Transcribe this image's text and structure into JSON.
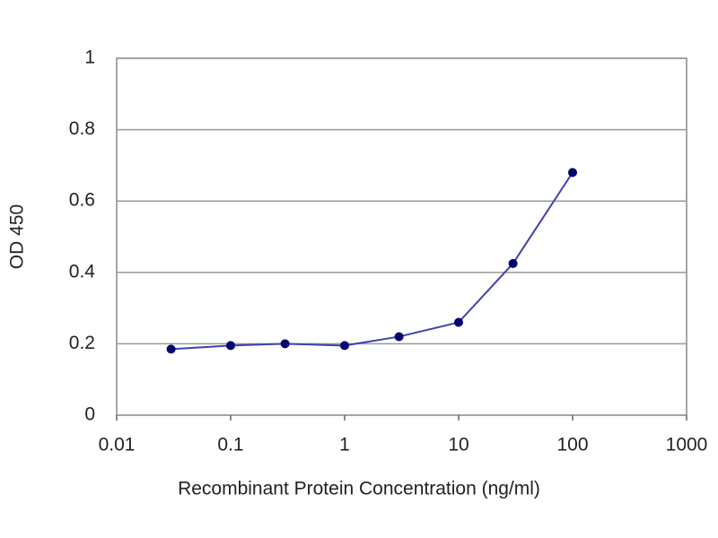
{
  "chart_data": {
    "type": "line",
    "x_label": "Recombinant Protein Concentration (ng/ml)",
    "y_label": "OD 450",
    "x": [
      0.03,
      0.1,
      0.3,
      1,
      3,
      10,
      30,
      100
    ],
    "series": [
      {
        "color": "#4040b0",
        "marker_color": "#000070",
        "values": [
          0.185,
          0.195,
          0.2,
          0.195,
          0.22,
          0.26,
          0.425,
          0.68
        ]
      }
    ],
    "xscale": "log",
    "xlim": [
      0.01,
      1000
    ],
    "xticks": [
      0.01,
      0.1,
      1,
      10,
      100,
      1000
    ],
    "ylim": [
      0,
      1
    ],
    "yticks": [
      0,
      0.2,
      0.4,
      0.6,
      0.8,
      1
    ],
    "grid": true
  }
}
